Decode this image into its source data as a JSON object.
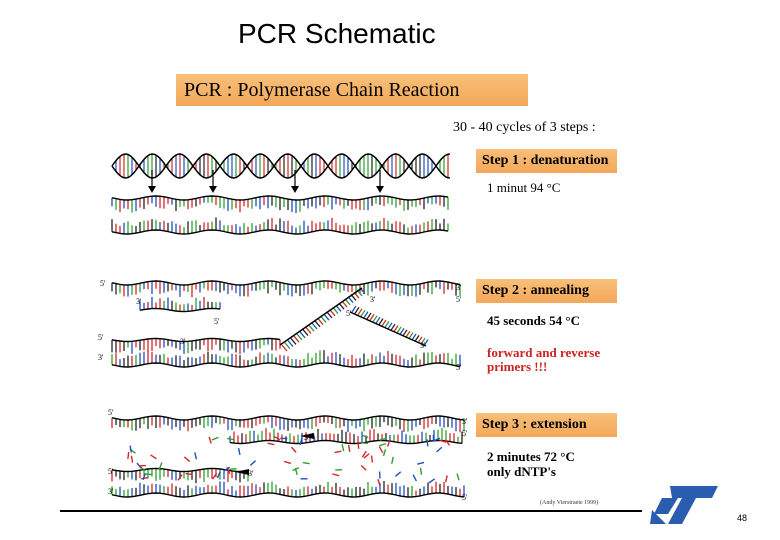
{
  "page": {
    "title": "PCR Schematic",
    "page_number": "48"
  },
  "diagram": {
    "banner": "PCR : Polymerase Chain Reaction",
    "cycles": "30 - 40 cycles of 3 steps :",
    "steps": [
      {
        "label": "Step 1 : denaturation",
        "lines": [
          "1 minut 94 °C"
        ]
      },
      {
        "label": "Step 2 : annealing",
        "lines": [
          "45 seconds 54 °C"
        ],
        "note": [
          "forward and reverse",
          "primers !!!"
        ]
      },
      {
        "label": "Step 3 : extension",
        "lines": [
          "2 minutes 72 °C",
          "only dNTP's"
        ]
      }
    ],
    "credit": "(Andy Vierstraete 1999)",
    "strand_labels": [
      "5'",
      "3'"
    ],
    "base_colors": [
      "#d62728",
      "#2ca02c",
      "#1f4fbf",
      "#222222"
    ]
  },
  "logo": {
    "name": "st-logo",
    "color": "#2a5db0"
  }
}
